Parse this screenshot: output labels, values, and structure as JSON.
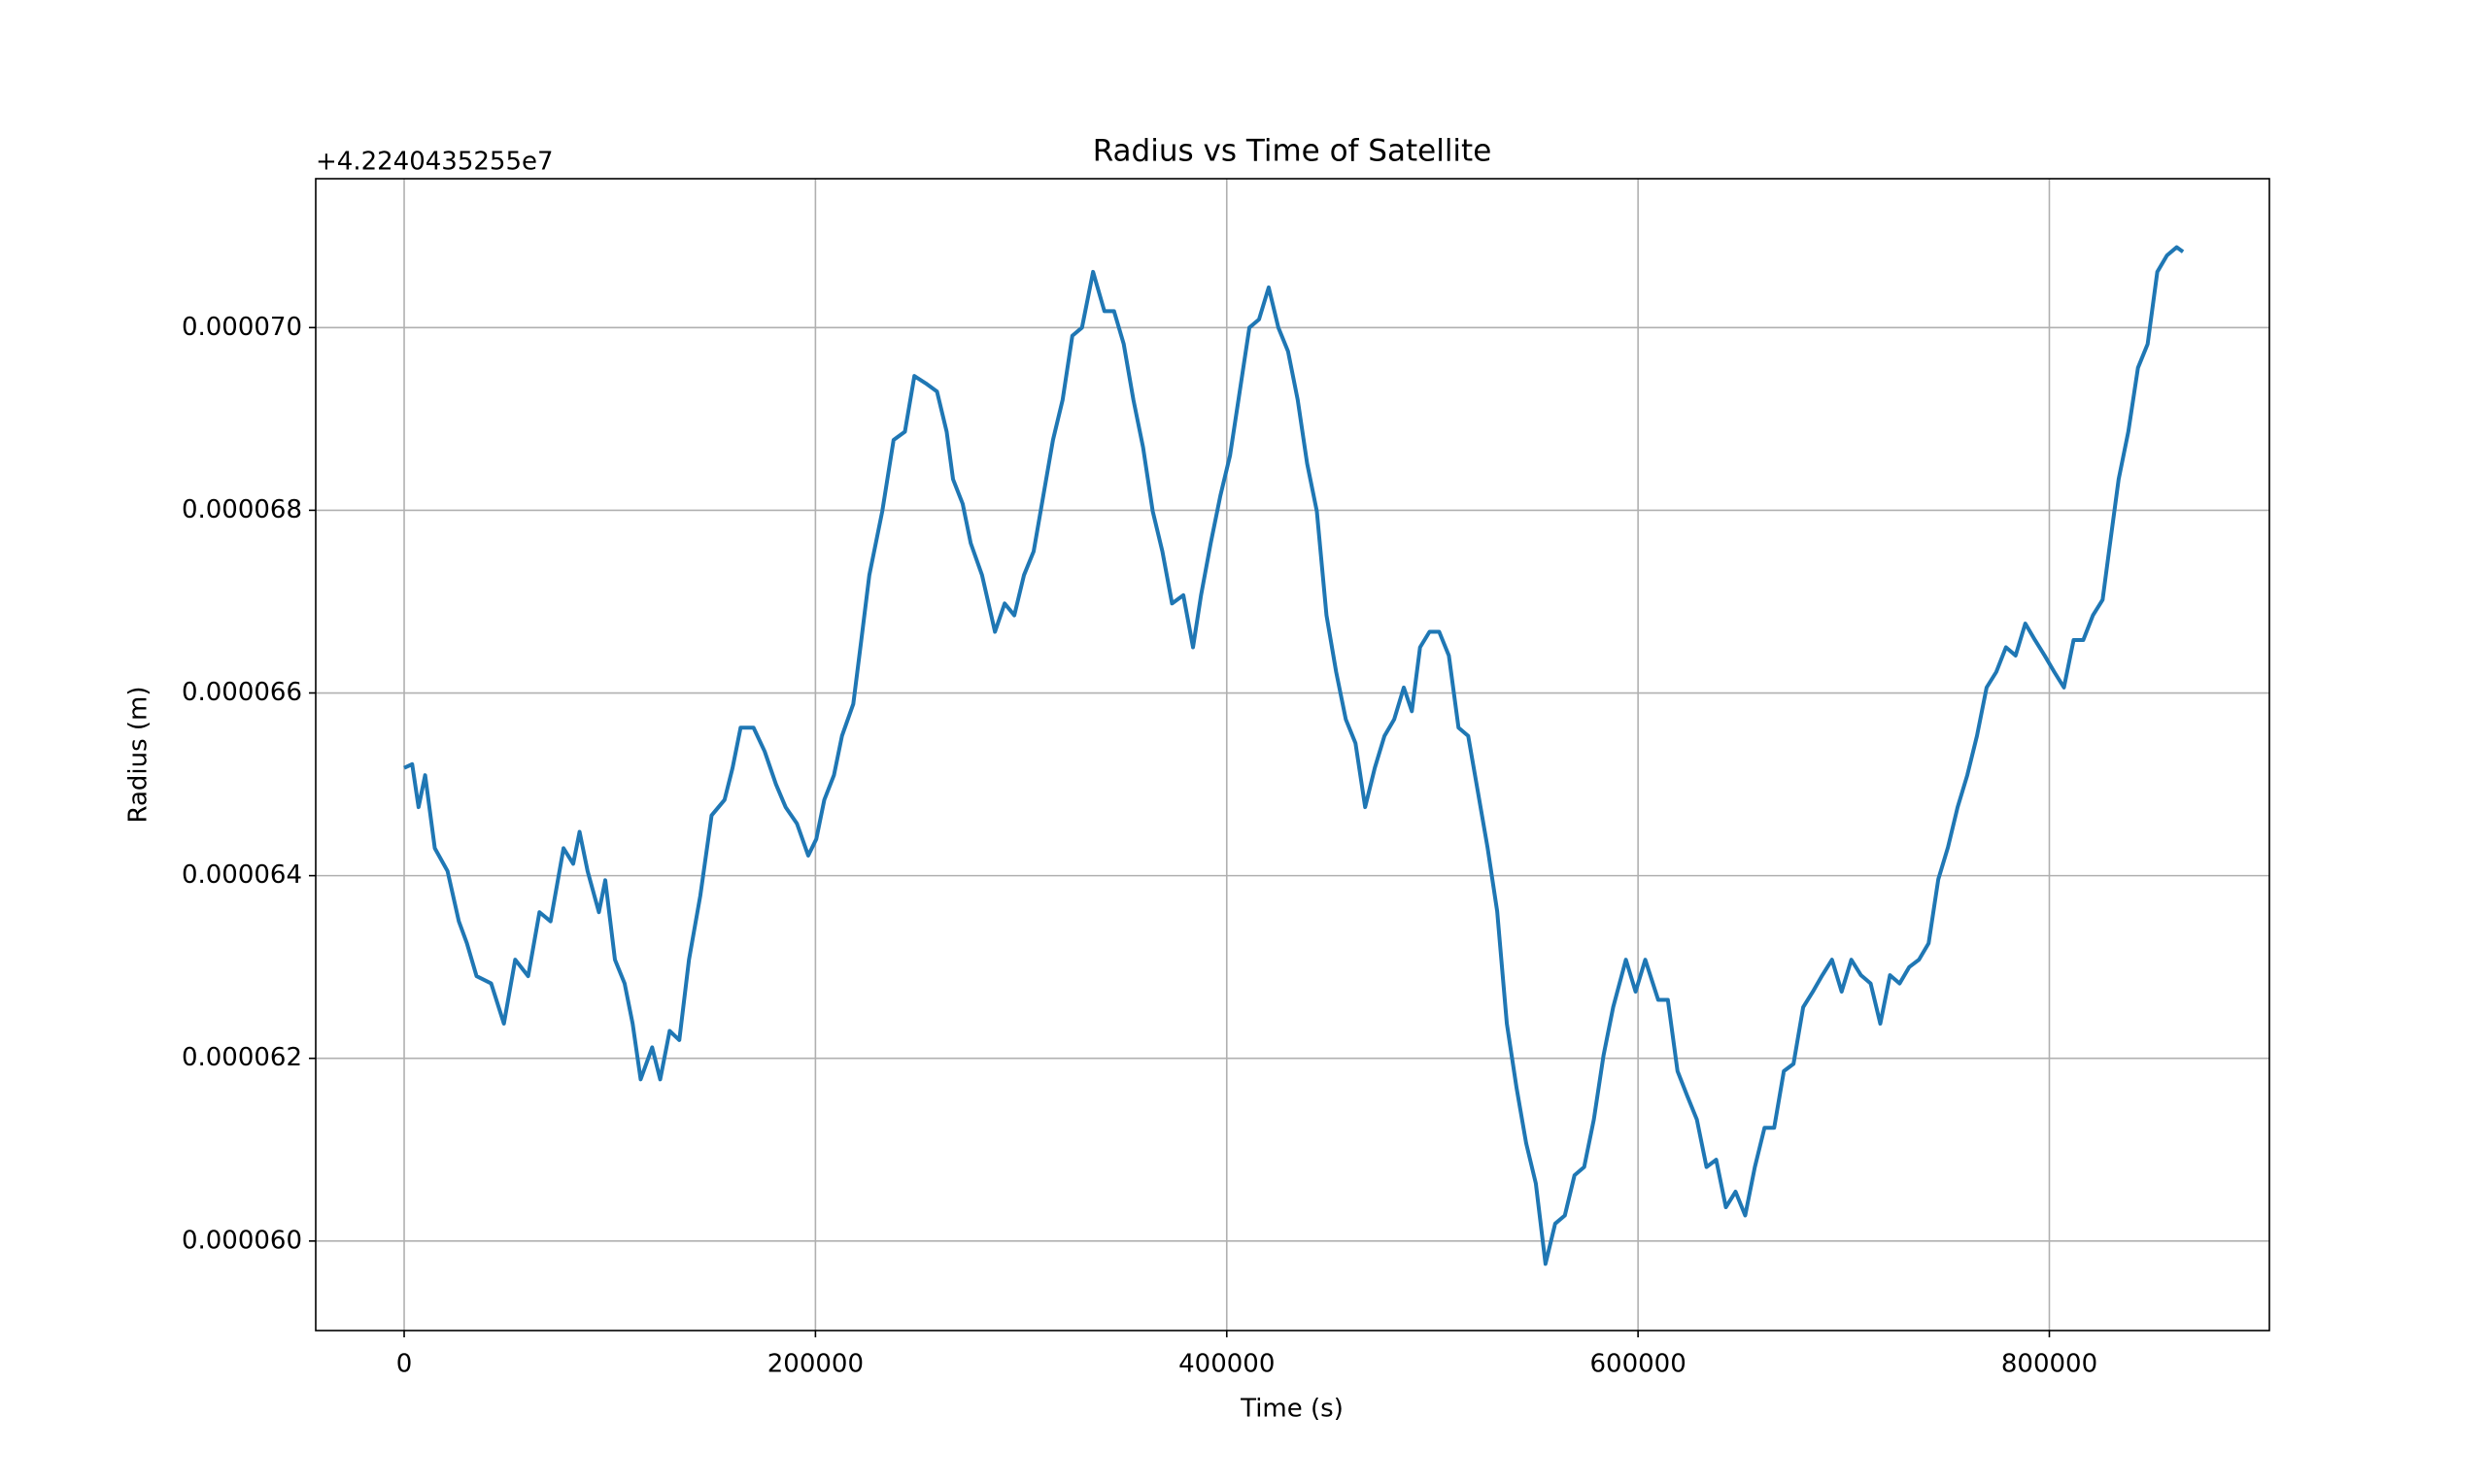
{
  "chart_data": {
    "type": "line",
    "title": "Radius vs Time of Satellite",
    "x_label": "Time (s)",
    "y_label": "Radius (m)",
    "y_offset_label": "+4.2240435255e7",
    "xlim": [
      -43000,
      907000
    ],
    "xticks": [
      0,
      200000,
      400000,
      600000,
      800000
    ],
    "ylim": [
      5.902e-05,
      7.163e-05
    ],
    "yticks": [
      {
        "value": 6e-05,
        "label": "0.000060"
      },
      {
        "value": 6.2e-05,
        "label": "0.000062"
      },
      {
        "value": 6.4e-05,
        "label": "0.000064"
      },
      {
        "value": 6.6e-05,
        "label": "0.000066"
      },
      {
        "value": 6.8e-05,
        "label": "0.000068"
      },
      {
        "value": 7e-05,
        "label": "0.000070"
      }
    ],
    "grid": true,
    "series": [
      {
        "name": "Radius",
        "color": "#1f77b4",
        "x": [
          0,
          3900,
          7000,
          10200,
          14900,
          21100,
          26600,
          30500,
          35200,
          42300,
          48500,
          54000,
          60300,
          65800,
          71200,
          77500,
          82200,
          85300,
          89200,
          94700,
          97800,
          102500,
          107200,
          111100,
          115000,
          120600,
          124500,
          129100,
          133800,
          138500,
          144000,
          149500,
          155800,
          159700,
          163600,
          169900,
          175300,
          180800,
          185500,
          191000,
          196500,
          200400,
          204300,
          209000,
          212900,
          218400,
          222300,
          226200,
          232500,
          238000,
          243500,
          248100,
          253600,
          259100,
          263800,
          266900,
          271600,
          275500,
          281000,
          287300,
          292000,
          296700,
          301400,
          306100,
          310800,
          315500,
          320200,
          324900,
          329600,
          335000,
          340500,
          345200,
          349900,
          354600,
          359300,
          364000,
          368700,
          373400,
          378900,
          383600,
          387500,
          392200,
          396900,
          401600,
          406300,
          411000,
          415700,
          420400,
          425100,
          429800,
          434500,
          439100,
          443800,
          448500,
          453200,
          457900,
          462600,
          467300,
          472000,
          476700,
          481400,
          486100,
          490000,
          494000,
          498600,
          503300,
          508000,
          512700,
          517400,
          522100,
          526800,
          531500,
          536200,
          540900,
          545600,
          550300,
          555000,
          559700,
          564400,
          569100,
          573800,
          578500,
          583200,
          587900,
          594100,
          598800,
          603500,
          609800,
          614500,
          619200,
          623900,
          628600,
          633300,
          638000,
          642700,
          647400,
          652100,
          656800,
          661500,
          666200,
          670900,
          675600,
          680300,
          685000,
          689600,
          694300,
          699000,
          703700,
          708400,
          713100,
          717800,
          722500,
          727200,
          731900,
          736600,
          741300,
          746000,
          750700,
          755400,
          760100,
          764800,
          769500,
          774200,
          778900,
          783600,
          788300,
          793000,
          797700,
          802400,
          807100,
          811800,
          816500,
          821200,
          825900,
          829000,
          833700,
          838400,
          843100,
          847800,
          852500,
          857200,
          861900,
          865000
        ],
        "values": [
          6.518e-05,
          6.522e-05,
          6.475e-05,
          6.51e-05,
          6.43e-05,
          6.405e-05,
          6.35e-05,
          6.326e-05,
          6.29e-05,
          6.282e-05,
          6.238e-05,
          6.308e-05,
          6.29e-05,
          6.36e-05,
          6.35e-05,
          6.43e-05,
          6.413e-05,
          6.448e-05,
          6.405e-05,
          6.36e-05,
          6.395e-05,
          6.308e-05,
          6.282e-05,
          6.238e-05,
          6.177e-05,
          6.212e-05,
          6.177e-05,
          6.23e-05,
          6.22e-05,
          6.308e-05,
          6.378e-05,
          6.466e-05,
          6.483e-05,
          6.518e-05,
          6.562e-05,
          6.562e-05,
          6.536e-05,
          6.5e-05,
          6.475e-05,
          6.457e-05,
          6.422e-05,
          6.44e-05,
          6.483e-05,
          6.51e-05,
          6.553e-05,
          6.588e-05,
          6.658e-05,
          6.729e-05,
          6.799e-05,
          6.877e-05,
          6.886e-05,
          6.947e-05,
          6.939e-05,
          6.93e-05,
          6.886e-05,
          6.834e-05,
          6.807e-05,
          6.764e-05,
          6.729e-05,
          6.667e-05,
          6.698e-05,
          6.685e-05,
          6.729e-05,
          6.755e-05,
          6.816e-05,
          6.877e-05,
          6.921e-05,
          6.991e-05,
          7e-05,
          7.061e-05,
          7.018e-05,
          7.018e-05,
          6.982e-05,
          6.921e-05,
          6.869e-05,
          6.799e-05,
          6.755e-05,
          6.698e-05,
          6.707e-05,
          6.65e-05,
          6.707e-05,
          6.764e-05,
          6.816e-05,
          6.86e-05,
          6.93e-05,
          7e-05,
          7.009e-05,
          7.044e-05,
          7e-05,
          6.974e-05,
          6.921e-05,
          6.851e-05,
          6.799e-05,
          6.685e-05,
          6.623e-05,
          6.571e-05,
          6.545e-05,
          6.475e-05,
          6.518e-05,
          6.553e-05,
          6.571e-05,
          6.606e-05,
          6.58e-05,
          6.65e-05,
          6.667e-05,
          6.667e-05,
          6.641e-05,
          6.562e-05,
          6.553e-05,
          6.492e-05,
          6.431e-05,
          6.361e-05,
          6.238e-05,
          6.168e-05,
          6.107e-05,
          6.063e-05,
          5.975e-05,
          6.019e-05,
          6.028e-05,
          6.072e-05,
          6.081e-05,
          6.133e-05,
          6.203e-05,
          6.256e-05,
          6.308e-05,
          6.273e-05,
          6.308e-05,
          6.264e-05,
          6.264e-05,
          6.186e-05,
          6.159e-05,
          6.133e-05,
          6.081e-05,
          6.089e-05,
          6.037e-05,
          6.054e-05,
          6.028e-05,
          6.081e-05,
          6.124e-05,
          6.124e-05,
          6.186e-05,
          6.194e-05,
          6.256e-05,
          6.273e-05,
          6.291e-05,
          6.308e-05,
          6.273e-05,
          6.308e-05,
          6.291e-05,
          6.282e-05,
          6.238e-05,
          6.291e-05,
          6.282e-05,
          6.3e-05,
          6.308e-05,
          6.326e-05,
          6.396e-05,
          6.431e-05,
          6.475e-05,
          6.51e-05,
          6.553e-05,
          6.606e-05,
          6.623e-05,
          6.65e-05,
          6.641e-05,
          6.676e-05,
          6.658e-05,
          6.641e-05,
          6.623e-05,
          6.606e-05,
          6.658e-05,
          6.658e-05,
          6.685e-05,
          6.702e-05,
          6.755e-05,
          6.834e-05,
          6.886e-05,
          6.956e-05,
          6.982e-05,
          7.061e-05,
          7.079e-05,
          7.088e-05,
          7.083e-05
        ]
      }
    ]
  }
}
